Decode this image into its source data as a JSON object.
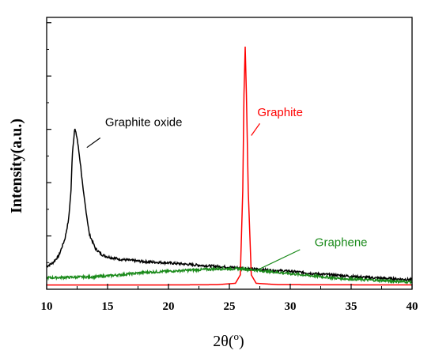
{
  "chart_data": {
    "type": "line",
    "title": "",
    "xlabel_main": "2θ(",
    "xlabel_sup": "o",
    "xlabel_end": ")",
    "ylabel": "Intensity(a.u.)",
    "xlim": [
      10,
      40
    ],
    "ylim": [
      0,
      100
    ],
    "xticks": [
      10,
      15,
      20,
      25,
      30,
      35,
      40
    ],
    "x_tick_labels": [
      "10",
      "15",
      "20",
      "25",
      "30",
      "35",
      "40"
    ],
    "grid": false,
    "series": [
      {
        "name": "Graphite oxide",
        "color": "#000000",
        "points": [
          [
            10,
            8.5
          ],
          [
            10.5,
            10
          ],
          [
            11,
            13
          ],
          [
            11.5,
            20
          ],
          [
            11.8,
            28
          ],
          [
            12,
            40
          ],
          [
            12.1,
            55
          ],
          [
            12.3,
            66
          ],
          [
            12.5,
            62
          ],
          [
            12.8,
            50
          ],
          [
            13,
            40
          ],
          [
            13.5,
            22
          ],
          [
            14,
            16
          ],
          [
            14.5,
            13.5
          ],
          [
            15,
            12.5
          ],
          [
            16,
            11.5
          ],
          [
            17,
            11
          ],
          [
            18,
            10.5
          ],
          [
            20,
            10
          ],
          [
            22,
            9.2
          ],
          [
            24,
            8.5
          ],
          [
            26,
            7.8
          ],
          [
            28,
            7
          ],
          [
            30,
            6.5
          ],
          [
            32,
            5.5
          ],
          [
            34,
            4.8
          ],
          [
            36,
            4
          ],
          [
            38,
            3.5
          ],
          [
            40,
            3
          ]
        ]
      },
      {
        "name": "Graphite",
        "color": "#ff0000",
        "points": [
          [
            10,
            0.8
          ],
          [
            20,
            0.8
          ],
          [
            24,
            0.9
          ],
          [
            25.5,
            1.5
          ],
          [
            25.9,
            5
          ],
          [
            26.1,
            40
          ],
          [
            26.2,
            80
          ],
          [
            26.3,
            100
          ],
          [
            26.4,
            80
          ],
          [
            26.55,
            40
          ],
          [
            26.8,
            5
          ],
          [
            27.2,
            1.5
          ],
          [
            29,
            0.9
          ],
          [
            40,
            0.8
          ]
        ]
      },
      {
        "name": "Graphene",
        "color": "#1a8a1a",
        "points": [
          [
            10,
            3.8
          ],
          [
            12,
            4
          ],
          [
            14,
            4.2
          ],
          [
            16,
            5
          ],
          [
            18,
            6
          ],
          [
            20,
            6.5
          ],
          [
            22,
            7
          ],
          [
            24,
            7.5
          ],
          [
            26,
            7.5
          ],
          [
            28,
            6.5
          ],
          [
            30,
            5.5
          ],
          [
            32,
            4.5
          ],
          [
            34,
            3.5
          ],
          [
            36,
            3
          ],
          [
            38,
            2.5
          ],
          [
            40,
            2
          ]
        ]
      }
    ],
    "annotations": [
      {
        "text": "Graphite oxide",
        "color": "#000000",
        "x": 14.8,
        "y": 67
      },
      {
        "text": "Graphite",
        "color": "#ff0000",
        "x": 27.3,
        "y": 71
      },
      {
        "text": "Graphene",
        "color": "#1a8a1a",
        "x": 32,
        "y": 17
      }
    ]
  }
}
